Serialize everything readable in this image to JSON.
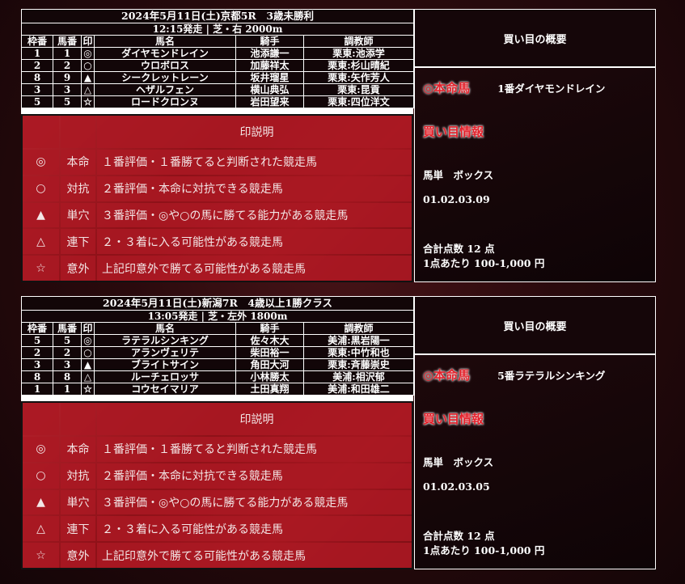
{
  "legend": {
    "title": "印説明",
    "rows": [
      {
        "mark": "◎",
        "name": "本命",
        "desc": "１番評価・１番勝てると判断された競走馬"
      },
      {
        "mark": "○",
        "name": "対抗",
        "desc": "２番評価・本命に対抗できる競走馬"
      },
      {
        "mark": "▲",
        "name": "単穴",
        "desc": "３番評価・◎や○の馬に勝てる能力がある競走馬"
      },
      {
        "mark": "△",
        "name": "連下",
        "desc": "２・３着に入る可能性がある競走馬"
      },
      {
        "mark": "☆",
        "name": "意外",
        "desc": "上記印意外で勝てる可能性がある競走馬"
      }
    ]
  },
  "columns": [
    "枠番",
    "馬番",
    "印",
    "馬名",
    "騎手",
    "調教師"
  ],
  "races": [
    {
      "title": "2024年5月11日(土)京都5R　3歳未勝利",
      "subtitle": "12:15発走 | 芝・右 2000m",
      "rows": [
        [
          "1",
          "1",
          "◎",
          "ダイヤモンドレイン",
          "池添謙一",
          "栗東:池添学"
        ],
        [
          "2",
          "2",
          "○",
          "ウロボロス",
          "加藤祥太",
          "栗東:杉山晴紀"
        ],
        [
          "8",
          "9",
          "▲",
          "シークレットレーン",
          "坂井瑠星",
          "栗東:矢作芳人"
        ],
        [
          "3",
          "3",
          "△",
          "ヘザルフェン",
          "横山典弘",
          "栗東:昆貢"
        ],
        [
          "5",
          "5",
          "☆",
          "ロードクロンヌ",
          "岩田望来",
          "栗東:四位洋文"
        ]
      ],
      "summary": {
        "header": "買い目の概要",
        "honmei_label": "◎本命馬",
        "honmei": "1番ダイヤモンドレイン",
        "info_label": "買い目情報",
        "bet_type": "馬単　ボックス",
        "numbers": "01.02.03.09",
        "total": "合計点数 12 点",
        "per": "1点あたり 100-1,000 円"
      }
    },
    {
      "title": "2024年5月11日(土)新潟7R　4歳以上1勝クラス",
      "subtitle": "13:05発走 | 芝・左外 1800m",
      "rows": [
        [
          "5",
          "5",
          "◎",
          "ラテラルシンキング",
          "佐々木大",
          "美浦:黒岩陽一"
        ],
        [
          "2",
          "2",
          "○",
          "アランヴェリテ",
          "柴田裕一",
          "栗東:中竹和也"
        ],
        [
          "3",
          "3",
          "▲",
          "ブライトサイン",
          "角田大河",
          "栗東:斉藤崇史"
        ],
        [
          "8",
          "8",
          "△",
          "ルーチェロッサ",
          "小林勝太",
          "美浦:相沢郁"
        ],
        [
          "1",
          "1",
          "☆",
          "コウセイマリア",
          "土田真翔",
          "美浦:和田雄二"
        ]
      ],
      "summary": {
        "header": "買い目の概要",
        "honmei_label": "◎本命馬",
        "honmei": "5番ラテラルシンキング",
        "info_label": "買い目情報",
        "bet_type": "馬単　ボックス",
        "numbers": "01.02.03.05",
        "total": "合計点数 12 点",
        "per": "1点あたり 100-1,000 円"
      }
    }
  ]
}
